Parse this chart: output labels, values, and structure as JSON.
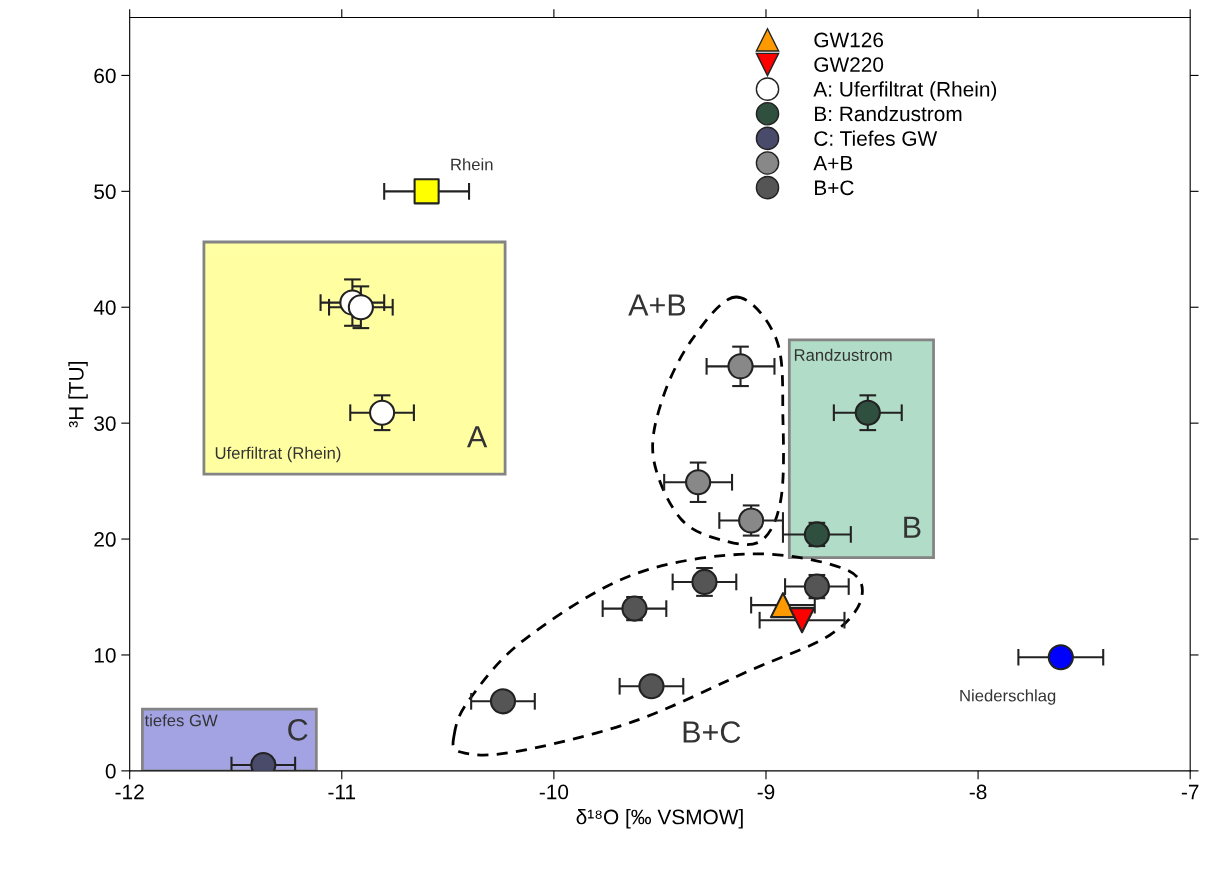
{
  "chart_data": {
    "type": "scatter",
    "xlabel": "δ¹⁸O [‰ VSMOW]",
    "ylabel": "³H [TU]",
    "xlim": [
      -12,
      -7
    ],
    "xticks": [
      -12,
      -11,
      -10,
      -9,
      -8,
      -7
    ],
    "ylim": [
      0,
      65
    ],
    "yticks": [
      0,
      10,
      20,
      30,
      40,
      50,
      60
    ],
    "grid": false,
    "legend": "top",
    "series": [
      {
        "color": "#ffff00",
        "marker": "square",
        "x": [
          -10.6
        ],
        "values": [
          50
        ],
        "xerrors": [
          0.2
        ]
      },
      {
        "color": "#0000ff",
        "marker": "circle",
        "x": [
          -7.61
        ],
        "values": [
          9.8
        ],
        "xerrors": [
          0.2
        ]
      },
      {
        "name": "GW126",
        "color": "#ff9900",
        "marker": "triangle",
        "x": [
          -8.92
        ],
        "values": [
          14.3
        ],
        "xerrors": [
          0.15
        ]
      },
      {
        "name": "GW220",
        "color": "#ff0000",
        "marker": "triangle_down",
        "x": [
          -8.83
        ],
        "values": [
          13.0
        ],
        "xerrors": [
          0.2
        ]
      },
      {
        "name": "A: Uferfiltrat (Rhein)",
        "color": "#ffffff",
        "marker": "circle",
        "x": [
          -10.95,
          -10.91,
          -10.81
        ],
        "values": [
          40.4,
          40.0,
          30.9
        ],
        "xerrors": [
          0.15,
          0.15,
          0.15
        ],
        "errors": [
          2,
          1.8,
          1.5
        ]
      },
      {
        "name": "B: Randzustrom",
        "color": "#2f4f3f",
        "marker": "circle",
        "x": [
          -8.52,
          -8.76
        ],
        "values": [
          30.9,
          20.4
        ],
        "xerrors": [
          0.16,
          0.16
        ],
        "errors": [
          1.5,
          1.0
        ]
      },
      {
        "name": "C: Tiefes GW",
        "color": "#4a4a6a",
        "marker": "circle",
        "x": [
          -11.37
        ],
        "values": [
          0.5
        ],
        "xerrors": [
          0.15
        ]
      },
      {
        "name": "A+B",
        "color": "#888888",
        "marker": "circle",
        "x": [
          -9.12,
          -9.32,
          -9.07
        ],
        "values": [
          34.9,
          24.9,
          21.6
        ],
        "xerrors": [
          0.16,
          0.16,
          0.15
        ],
        "errors": [
          1.7,
          1.7,
          1.3
        ]
      },
      {
        "name": "B+C",
        "color": "#555555",
        "marker": "circle",
        "x": [
          -9.29,
          -9.62,
          -8.76,
          -9.54,
          -10.24
        ],
        "values": [
          16.3,
          14.0,
          15.9,
          7.3,
          6.0
        ],
        "xerrors": [
          0.15,
          0.15,
          0.15,
          0.15,
          0.15
        ],
        "errors": [
          1.2,
          1.0,
          1.0,
          0.8,
          0.5
        ]
      }
    ],
    "annotations": [
      "Rhein",
      "Uferfiltrat (Rhein)",
      "A",
      "Randzustrom",
      "B",
      "tiefes GW",
      "C",
      "A+B",
      "B+C",
      "Niederschlag"
    ]
  }
}
